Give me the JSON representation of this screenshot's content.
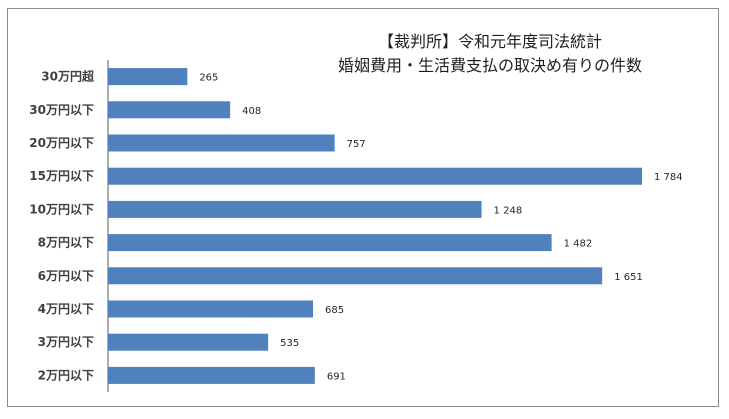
{
  "chart_data": {
    "type": "bar",
    "orientation": "horizontal",
    "title": [
      "【裁判所】令和元年度司法統計",
      "婚姻費用・生活費支払の取決め有りの件数"
    ],
    "categories": [
      "30万円超",
      "30万円以下",
      "20万円以下",
      "15万円以下",
      "10万円以下",
      "8万円以下",
      "6万円以下",
      "4万円以下",
      "3万円以下",
      "2万円以下"
    ],
    "values": [
      265,
      408,
      757,
      1784,
      1248,
      1482,
      1651,
      685,
      535,
      691
    ],
    "value_labels": [
      "265",
      "408",
      "757",
      "1 784",
      "1 248",
      "1 482",
      "1 651",
      "685",
      "535",
      "691"
    ],
    "xlim": [
      0,
      2000
    ],
    "grid": false,
    "legend": "none",
    "bar_color": "#4f81bd"
  }
}
